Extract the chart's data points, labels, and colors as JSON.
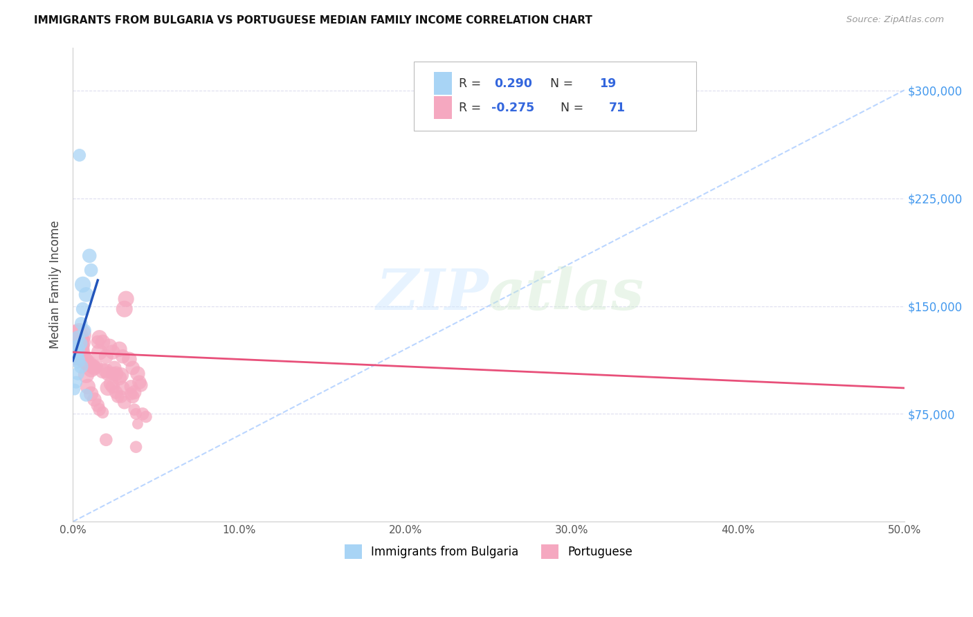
{
  "title": "IMMIGRANTS FROM BULGARIA VS PORTUGUESE MEDIAN FAMILY INCOME CORRELATION CHART",
  "source": "Source: ZipAtlas.com",
  "ylabel": "Median Family Income",
  "y_ticks": [
    75000,
    150000,
    225000,
    300000
  ],
  "y_tick_labels": [
    "$75,000",
    "$150,000",
    "$225,000",
    "$300,000"
  ],
  "x_min": 0.0,
  "x_max": 0.5,
  "y_min": 0,
  "y_max": 330000,
  "R1": 0.29,
  "N1": 19,
  "R2": -0.275,
  "N2": 71,
  "color_blue": "#A8D4F5",
  "color_pink": "#F5A8C0",
  "color_blue_line": "#2255BB",
  "color_pink_line": "#E8507A",
  "color_diag": "#AACCFF",
  "watermark": "ZIPatlas",
  "bulgaria_points": [
    [
      0.004,
      255000
    ],
    [
      0.01,
      185000
    ],
    [
      0.011,
      175000
    ],
    [
      0.006,
      165000
    ],
    [
      0.008,
      158000
    ],
    [
      0.006,
      148000
    ],
    [
      0.005,
      138000
    ],
    [
      0.007,
      133000
    ],
    [
      0.003,
      128000
    ],
    [
      0.005,
      124000
    ],
    [
      0.002,
      120000
    ],
    [
      0.001,
      118000
    ],
    [
      0.002,
      115000
    ],
    [
      0.003,
      112000
    ],
    [
      0.005,
      108000
    ],
    [
      0.003,
      103000
    ],
    [
      0.002,
      97000
    ],
    [
      0.001,
      92000
    ],
    [
      0.008,
      88000
    ]
  ],
  "bulgaria_sizes": [
    180,
    220,
    200,
    280,
    240,
    200,
    180,
    200,
    220,
    180,
    350,
    300,
    280,
    250,
    220,
    190,
    170,
    150,
    180
  ],
  "portuguese_points": [
    [
      0.002,
      128000
    ],
    [
      0.003,
      125000
    ],
    [
      0.004,
      122000
    ],
    [
      0.004,
      130000
    ],
    [
      0.003,
      118000
    ],
    [
      0.005,
      125000
    ],
    [
      0.004,
      120000
    ],
    [
      0.002,
      116000
    ],
    [
      0.005,
      115000
    ],
    [
      0.006,
      113000
    ],
    [
      0.007,
      111000
    ],
    [
      0.003,
      120000
    ],
    [
      0.004,
      115000
    ],
    [
      0.008,
      112000
    ],
    [
      0.01,
      110000
    ],
    [
      0.007,
      113000
    ],
    [
      0.009,
      110000
    ],
    [
      0.012,
      108000
    ],
    [
      0.013,
      107000
    ],
    [
      0.014,
      108000
    ],
    [
      0.015,
      125000
    ],
    [
      0.011,
      106000
    ],
    [
      0.016,
      128000
    ],
    [
      0.018,
      125000
    ],
    [
      0.016,
      118000
    ],
    [
      0.02,
      115000
    ],
    [
      0.018,
      105000
    ],
    [
      0.02,
      105000
    ],
    [
      0.021,
      103000
    ],
    [
      0.022,
      122000
    ],
    [
      0.024,
      118000
    ],
    [
      0.025,
      107000
    ],
    [
      0.024,
      103000
    ],
    [
      0.028,
      120000
    ],
    [
      0.026,
      103000
    ],
    [
      0.03,
      115000
    ],
    [
      0.029,
      102000
    ],
    [
      0.032,
      155000
    ],
    [
      0.031,
      148000
    ],
    [
      0.028,
      100000
    ],
    [
      0.03,
      93000
    ],
    [
      0.031,
      83000
    ],
    [
      0.029,
      87000
    ],
    [
      0.034,
      113000
    ],
    [
      0.036,
      107000
    ],
    [
      0.035,
      94000
    ],
    [
      0.035,
      89000
    ],
    [
      0.037,
      78000
    ],
    [
      0.038,
      75000
    ],
    [
      0.039,
      68000
    ],
    [
      0.02,
      57000
    ],
    [
      0.038,
      52000
    ],
    [
      0.036,
      87000
    ],
    [
      0.037,
      90000
    ],
    [
      0.039,
      103000
    ],
    [
      0.021,
      93000
    ],
    [
      0.023,
      96000
    ],
    [
      0.024,
      94000
    ],
    [
      0.026,
      90000
    ],
    [
      0.027,
      87000
    ],
    [
      0.008,
      102000
    ],
    [
      0.009,
      94000
    ],
    [
      0.011,
      89000
    ],
    [
      0.013,
      85000
    ],
    [
      0.015,
      81000
    ],
    [
      0.016,
      78000
    ],
    [
      0.018,
      76000
    ],
    [
      0.04,
      97000
    ],
    [
      0.041,
      95000
    ],
    [
      0.042,
      75000
    ],
    [
      0.044,
      73000
    ]
  ],
  "portuguese_sizes": [
    700,
    550,
    450,
    600,
    650,
    400,
    320,
    480,
    320,
    280,
    260,
    560,
    320,
    280,
    260,
    320,
    280,
    260,
    240,
    220,
    200,
    280,
    260,
    240,
    280,
    230,
    260,
    240,
    220,
    260,
    240,
    220,
    200,
    260,
    240,
    220,
    260,
    280,
    300,
    240,
    220,
    200,
    180,
    240,
    220,
    200,
    180,
    160,
    150,
    130,
    180,
    160,
    200,
    220,
    240,
    260,
    240,
    220,
    200,
    180,
    280,
    260,
    240,
    220,
    200,
    180,
    160,
    220,
    200,
    180,
    160
  ],
  "bg_trend_x": [
    0.0,
    0.015
  ],
  "bg_trend_y": [
    112000,
    168000
  ],
  "pt_trend_x": [
    0.0,
    0.5
  ],
  "pt_trend_y": [
    118000,
    93000
  ]
}
